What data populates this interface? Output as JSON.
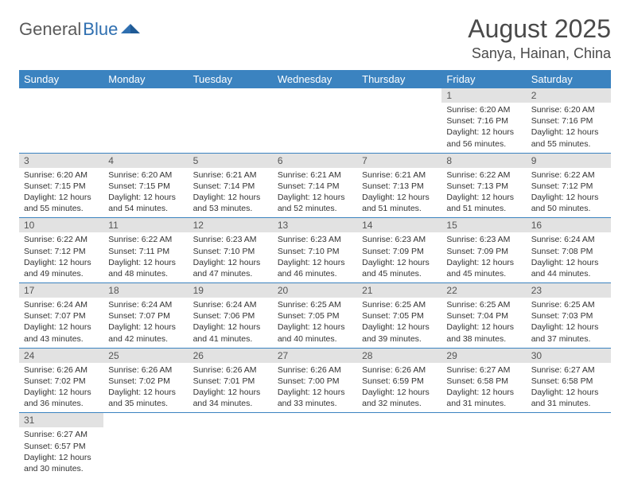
{
  "logo": {
    "word1": "General",
    "word2": "Blue"
  },
  "title": "August 2025",
  "location": "Sanya, Hainan, China",
  "colors": {
    "header_bg": "#3b83c0",
    "header_text": "#ffffff",
    "daynum_bg": "#e2e2e2",
    "row_border": "#3b83c0",
    "title_color": "#4a4a4a",
    "text_color": "#333333"
  },
  "typography": {
    "title_fontsize": 32,
    "location_fontsize": 18,
    "weekday_fontsize": 13,
    "daynum_fontsize": 12,
    "cell_fontsize": 10.5
  },
  "weekdays": [
    "Sunday",
    "Monday",
    "Tuesday",
    "Wednesday",
    "Thursday",
    "Friday",
    "Saturday"
  ],
  "weeks": [
    [
      null,
      null,
      null,
      null,
      null,
      {
        "n": "1",
        "sr": "6:20 AM",
        "ss": "7:16 PM",
        "dh": "12",
        "dm": "56"
      },
      {
        "n": "2",
        "sr": "6:20 AM",
        "ss": "7:16 PM",
        "dh": "12",
        "dm": "55"
      }
    ],
    [
      {
        "n": "3",
        "sr": "6:20 AM",
        "ss": "7:15 PM",
        "dh": "12",
        "dm": "55"
      },
      {
        "n": "4",
        "sr": "6:20 AM",
        "ss": "7:15 PM",
        "dh": "12",
        "dm": "54"
      },
      {
        "n": "5",
        "sr": "6:21 AM",
        "ss": "7:14 PM",
        "dh": "12",
        "dm": "53"
      },
      {
        "n": "6",
        "sr": "6:21 AM",
        "ss": "7:14 PM",
        "dh": "12",
        "dm": "52"
      },
      {
        "n": "7",
        "sr": "6:21 AM",
        "ss": "7:13 PM",
        "dh": "12",
        "dm": "51"
      },
      {
        "n": "8",
        "sr": "6:22 AM",
        "ss": "7:13 PM",
        "dh": "12",
        "dm": "51"
      },
      {
        "n": "9",
        "sr": "6:22 AM",
        "ss": "7:12 PM",
        "dh": "12",
        "dm": "50"
      }
    ],
    [
      {
        "n": "10",
        "sr": "6:22 AM",
        "ss": "7:12 PM",
        "dh": "12",
        "dm": "49"
      },
      {
        "n": "11",
        "sr": "6:22 AM",
        "ss": "7:11 PM",
        "dh": "12",
        "dm": "48"
      },
      {
        "n": "12",
        "sr": "6:23 AM",
        "ss": "7:10 PM",
        "dh": "12",
        "dm": "47"
      },
      {
        "n": "13",
        "sr": "6:23 AM",
        "ss": "7:10 PM",
        "dh": "12",
        "dm": "46"
      },
      {
        "n": "14",
        "sr": "6:23 AM",
        "ss": "7:09 PM",
        "dh": "12",
        "dm": "45"
      },
      {
        "n": "15",
        "sr": "6:23 AM",
        "ss": "7:09 PM",
        "dh": "12",
        "dm": "45"
      },
      {
        "n": "16",
        "sr": "6:24 AM",
        "ss": "7:08 PM",
        "dh": "12",
        "dm": "44"
      }
    ],
    [
      {
        "n": "17",
        "sr": "6:24 AM",
        "ss": "7:07 PM",
        "dh": "12",
        "dm": "43"
      },
      {
        "n": "18",
        "sr": "6:24 AM",
        "ss": "7:07 PM",
        "dh": "12",
        "dm": "42"
      },
      {
        "n": "19",
        "sr": "6:24 AM",
        "ss": "7:06 PM",
        "dh": "12",
        "dm": "41"
      },
      {
        "n": "20",
        "sr": "6:25 AM",
        "ss": "7:05 PM",
        "dh": "12",
        "dm": "40"
      },
      {
        "n": "21",
        "sr": "6:25 AM",
        "ss": "7:05 PM",
        "dh": "12",
        "dm": "39"
      },
      {
        "n": "22",
        "sr": "6:25 AM",
        "ss": "7:04 PM",
        "dh": "12",
        "dm": "38"
      },
      {
        "n": "23",
        "sr": "6:25 AM",
        "ss": "7:03 PM",
        "dh": "12",
        "dm": "37"
      }
    ],
    [
      {
        "n": "24",
        "sr": "6:26 AM",
        "ss": "7:02 PM",
        "dh": "12",
        "dm": "36"
      },
      {
        "n": "25",
        "sr": "6:26 AM",
        "ss": "7:02 PM",
        "dh": "12",
        "dm": "35"
      },
      {
        "n": "26",
        "sr": "6:26 AM",
        "ss": "7:01 PM",
        "dh": "12",
        "dm": "34"
      },
      {
        "n": "27",
        "sr": "6:26 AM",
        "ss": "7:00 PM",
        "dh": "12",
        "dm": "33"
      },
      {
        "n": "28",
        "sr": "6:26 AM",
        "ss": "6:59 PM",
        "dh": "12",
        "dm": "32"
      },
      {
        "n": "29",
        "sr": "6:27 AM",
        "ss": "6:58 PM",
        "dh": "12",
        "dm": "31"
      },
      {
        "n": "30",
        "sr": "6:27 AM",
        "ss": "6:58 PM",
        "dh": "12",
        "dm": "31"
      }
    ],
    [
      {
        "n": "31",
        "sr": "6:27 AM",
        "ss": "6:57 PM",
        "dh": "12",
        "dm": "30"
      },
      null,
      null,
      null,
      null,
      null,
      null
    ]
  ],
  "labels": {
    "sunrise": "Sunrise:",
    "sunset": "Sunset:",
    "daylight_prefix": "Daylight:",
    "hours_word": "hours",
    "and_word": "and",
    "minutes_word": "minutes."
  }
}
